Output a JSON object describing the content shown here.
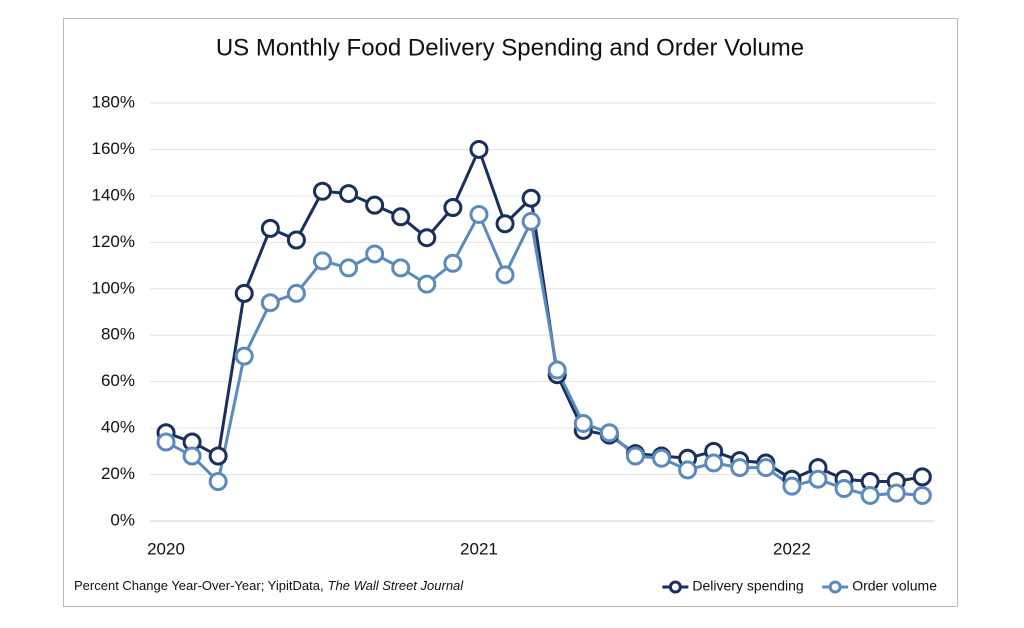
{
  "chart_data": {
    "type": "line",
    "title": "US Monthly Food Delivery Spending and Order Volume",
    "note": "Percent Change Year-Over-Year; YipitData,",
    "source": "The Wall Street Journal",
    "categories": [
      "2020",
      null,
      null,
      null,
      null,
      null,
      null,
      null,
      null,
      null,
      null,
      null,
      "2021",
      null,
      null,
      null,
      null,
      null,
      null,
      null,
      null,
      null,
      null,
      null,
      "2022",
      null,
      null,
      null,
      null,
      null
    ],
    "series": [
      {
        "name": "Delivery spending",
        "color": "#1b2f5e",
        "values": [
          38,
          34,
          28,
          98,
          126,
          121,
          142,
          141,
          136,
          131,
          122,
          135,
          160,
          128,
          139,
          63,
          39,
          37,
          29,
          28,
          27,
          30,
          26,
          25,
          18,
          23,
          18,
          17,
          17,
          19
        ]
      },
      {
        "name": "Order volume",
        "color": "#5b8bbd",
        "values": [
          34,
          28,
          17,
          71,
          94,
          98,
          112,
          109,
          115,
          109,
          102,
          111,
          132,
          106,
          129,
          65,
          42,
          38,
          28,
          27,
          22,
          25,
          23,
          23,
          15,
          18,
          14,
          11,
          12,
          11
        ]
      }
    ],
    "ylim": [
      0,
      180
    ],
    "yticks": [
      {
        "value": 0,
        "label": "0%"
      },
      {
        "value": 20,
        "label": "20%"
      },
      {
        "value": 40,
        "label": "40%"
      },
      {
        "value": 60,
        "label": "60%"
      },
      {
        "value": 80,
        "label": "80%"
      },
      {
        "value": 100,
        "label": "100%"
      },
      {
        "value": 120,
        "label": "120%"
      },
      {
        "value": 140,
        "label": "140%"
      },
      {
        "value": 160,
        "label": "160%"
      },
      {
        "value": 180,
        "label": "180%"
      }
    ],
    "grid": true,
    "legend": "bottom-right"
  }
}
